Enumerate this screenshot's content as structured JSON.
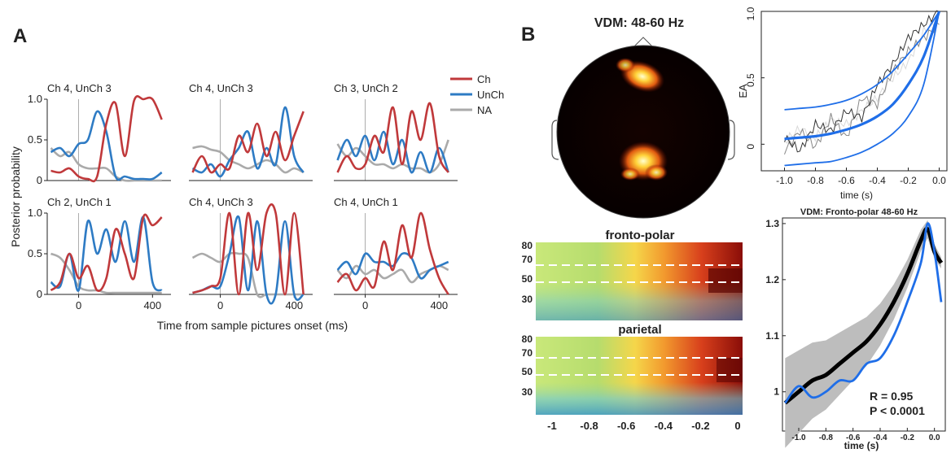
{
  "panel_a": {
    "letter": "A",
    "ylabel": "Posterior probability",
    "xlabel": "Time from sample pictures onset (ms)",
    "y_ticks": [
      "0",
      "0.5",
      "1.0"
    ],
    "x_ticks": [
      "0",
      "400"
    ],
    "legend": [
      {
        "label": "Ch",
        "color": "#c0393b"
      },
      {
        "label": "UnCh",
        "color": "#2e7bc4"
      },
      {
        "label": "NA",
        "color": "#aaaaaa"
      }
    ],
    "subplot_titles": [
      "Ch 4, UnCh 3",
      "Ch 4, UnCh 3",
      "Ch 3, UnCh 2",
      "Ch 2, UnCh 1",
      "Ch 4, UnCh 3",
      "Ch 4, UnCh 1"
    ]
  },
  "panel_b": {
    "letter": "B",
    "topo_title": "VDM: 48-60 Hz",
    "tf_titles": [
      "fronto-polar",
      "parietal"
    ],
    "tf_y_ticks": [
      "80",
      "70",
      "50",
      "30"
    ],
    "tf_x_ticks": [
      "-1",
      "-0.8",
      "-0.6",
      "-0.4",
      "-0.2",
      "0"
    ],
    "ea_plot": {
      "ylabel": "EA",
      "xlabel": "time (s)",
      "y_ticks": [
        "0",
        "0.5",
        "1.0"
      ],
      "x_ticks": [
        "-1.0",
        "-0.8",
        "-0.6",
        "-0.4",
        "-0.2",
        "0.0"
      ]
    },
    "fit_plot": {
      "title": "VDM: Fronto-polar 48-60 Hz",
      "xlabel": "time (s)",
      "y_ticks": [
        "1",
        "1.1",
        "1.2",
        "1.3"
      ],
      "x_ticks": [
        "-1.0",
        "-0.8",
        "-0.6",
        "-0.4",
        "-0.2",
        "0.0"
      ],
      "stats_r": "R = 0.95",
      "stats_p": "P < 0.0001"
    }
  },
  "chart_data": [
    {
      "type": "line",
      "title": "Ch 4, UnCh 3",
      "x": [
        -150,
        -100,
        -50,
        0,
        50,
        100,
        150,
        200,
        250,
        300,
        350,
        400,
        450
      ],
      "ylim": [
        0,
        1
      ],
      "series": [
        {
          "name": "Ch",
          "values": [
            0.12,
            0.1,
            0.15,
            0.05,
            0.02,
            0.05,
            0.7,
            0.95,
            0.3,
            0.98,
            1.0,
            1.0,
            0.75
          ]
        },
        {
          "name": "UnCh",
          "values": [
            0.35,
            0.4,
            0.3,
            0.45,
            0.5,
            0.85,
            0.6,
            0.05,
            0.05,
            0.02,
            0.02,
            0.02,
            0.1
          ]
        },
        {
          "name": "NA",
          "values": [
            0.4,
            0.3,
            0.35,
            0.2,
            0.15,
            0.15,
            0.15,
            0.05,
            0.0,
            0.0,
            0.0,
            0.0,
            0.0
          ]
        }
      ]
    },
    {
      "type": "line",
      "title": "Ch 4, UnCh 3",
      "x": [
        -150,
        -100,
        -50,
        0,
        50,
        100,
        150,
        200,
        250,
        300,
        350,
        400,
        450
      ],
      "ylim": [
        0,
        1
      ],
      "series": [
        {
          "name": "Ch",
          "values": [
            0.1,
            0.3,
            0.1,
            0.2,
            0.15,
            0.55,
            0.35,
            0.7,
            0.3,
            0.6,
            0.25,
            0.55,
            0.85
          ]
        },
        {
          "name": "UnCh",
          "values": [
            0.15,
            0.1,
            0.2,
            0.05,
            0.25,
            0.4,
            0.6,
            0.15,
            0.4,
            0.2,
            0.9,
            0.3,
            0.1
          ]
        },
        {
          "name": "NA",
          "values": [
            0.4,
            0.42,
            0.38,
            0.35,
            0.25,
            0.2,
            0.15,
            0.2,
            0.25,
            0.2,
            0.1,
            0.15,
            0.1
          ]
        }
      ]
    },
    {
      "type": "line",
      "title": "Ch 3, UnCh 2",
      "x": [
        -150,
        -100,
        -50,
        0,
        50,
        100,
        150,
        200,
        250,
        300,
        350,
        400,
        450
      ],
      "ylim": [
        0,
        1
      ],
      "series": [
        {
          "name": "Ch",
          "values": [
            0.1,
            0.3,
            0.15,
            0.2,
            0.55,
            0.35,
            0.9,
            0.2,
            0.85,
            0.5,
            0.95,
            0.3,
            0.1
          ]
        },
        {
          "name": "UnCh",
          "values": [
            0.25,
            0.5,
            0.3,
            0.55,
            0.25,
            0.6,
            0.2,
            0.5,
            0.1,
            0.35,
            0.1,
            0.4,
            0.1
          ]
        },
        {
          "name": "NA",
          "values": [
            0.45,
            0.3,
            0.4,
            0.3,
            0.2,
            0.2,
            0.15,
            0.2,
            0.15,
            0.15,
            0.1,
            0.2,
            0.5
          ]
        }
      ]
    },
    {
      "type": "line",
      "title": "Ch 2, UnCh 1",
      "x": [
        -150,
        -100,
        -50,
        0,
        50,
        100,
        150,
        200,
        250,
        300,
        350,
        400,
        450
      ],
      "ylim": [
        0,
        1
      ],
      "series": [
        {
          "name": "Ch",
          "values": [
            0.05,
            0.15,
            0.5,
            0.2,
            0.35,
            0.05,
            0.2,
            0.8,
            0.5,
            0.2,
            0.95,
            0.85,
            0.95
          ]
        },
        {
          "name": "UnCh",
          "values": [
            0.15,
            0.1,
            0.5,
            0.05,
            0.9,
            0.5,
            0.8,
            0.4,
            0.9,
            0.4,
            0.95,
            0.15,
            0.05
          ]
        },
        {
          "name": "NA",
          "values": [
            0.5,
            0.45,
            0.3,
            0.1,
            0.05,
            0.05,
            0.02,
            0.02,
            0.02,
            0.02,
            0.02,
            0.02,
            0.02
          ]
        }
      ]
    },
    {
      "type": "line",
      "title": "Ch 4, UnCh 3",
      "x": [
        -150,
        -100,
        -50,
        0,
        50,
        100,
        150,
        200,
        250,
        300,
        350,
        400,
        450
      ],
      "ylim": [
        0,
        1
      ],
      "series": [
        {
          "name": "Ch",
          "values": [
            0.02,
            0.05,
            0.1,
            0.2,
            1.0,
            0.0,
            1.0,
            0.3,
            1.0,
            1.0,
            0.0,
            1.0,
            0.0
          ]
        },
        {
          "name": "UnCh",
          "values": [
            0.02,
            0.05,
            0.1,
            0.1,
            0.5,
            0.95,
            0.05,
            0.9,
            0.0,
            0.0,
            0.9,
            0.0,
            0.0
          ]
        },
        {
          "name": "NA",
          "values": [
            0.45,
            0.5,
            0.45,
            0.4,
            0.5,
            0.5,
            0.45,
            0.0,
            0.0,
            0.0,
            0.0,
            0.0,
            0.0
          ]
        }
      ]
    },
    {
      "type": "line",
      "title": "Ch 4, UnCh 1",
      "x": [
        -150,
        -100,
        -50,
        0,
        50,
        100,
        150,
        200,
        250,
        300,
        350,
        400,
        450
      ],
      "ylim": [
        0,
        1
      ],
      "series": [
        {
          "name": "Ch",
          "values": [
            0.15,
            0.25,
            0.05,
            0.2,
            0.1,
            0.65,
            0.3,
            0.85,
            0.45,
            1.0,
            0.55,
            0.2,
            0.0
          ]
        },
        {
          "name": "UnCh",
          "values": [
            0.3,
            0.4,
            0.25,
            0.5,
            0.4,
            0.4,
            0.35,
            0.5,
            0.45,
            0.2,
            0.3,
            0.35,
            0.4
          ]
        },
        {
          "name": "NA",
          "values": [
            0.3,
            0.2,
            0.35,
            0.25,
            0.3,
            0.2,
            0.25,
            0.3,
            0.15,
            0.25,
            0.3,
            0.35,
            0.3
          ]
        }
      ]
    },
    {
      "type": "line",
      "x": [
        -1.0,
        -0.9,
        -0.8,
        -0.7,
        -0.6,
        -0.5,
        -0.4,
        -0.3,
        -0.2,
        -0.1,
        0.0
      ],
      "xlabel": "time (s)",
      "ylabel": "EA",
      "ylim": [
        -0.2,
        1.0
      ],
      "series": [
        {
          "values": [
            0.04,
            0.05,
            0.06,
            0.08,
            0.11,
            0.15,
            0.21,
            0.3,
            0.45,
            0.66,
            1.0
          ]
        },
        {
          "values": [
            0.26,
            0.27,
            0.28,
            0.3,
            0.33,
            0.38,
            0.45,
            0.55,
            0.68,
            0.82,
            1.0
          ]
        },
        {
          "values": [
            -0.16,
            -0.15,
            -0.14,
            -0.13,
            -0.1,
            -0.06,
            0.0,
            0.08,
            0.21,
            0.45,
            1.0
          ]
        },
        {
          "values": [
            0.02,
            0.12,
            0.05,
            0.18,
            0.15,
            0.25,
            0.35,
            0.5,
            0.62,
            0.85,
            0.95
          ]
        },
        {
          "values": [
            -0.05,
            0.1,
            -0.02,
            0.2,
            0.05,
            0.35,
            0.3,
            0.55,
            0.7,
            0.8,
            0.9
          ]
        },
        {
          "values": [
            0.05,
            -0.05,
            0.15,
            0.1,
            0.25,
            0.2,
            0.45,
            0.6,
            0.8,
            0.9,
            1.0
          ]
        }
      ]
    },
    {
      "type": "line",
      "title": "VDM: Fronto-polar 48-60 Hz",
      "x": [
        -1.1,
        -1.0,
        -0.9,
        -0.8,
        -0.7,
        -0.6,
        -0.5,
        -0.4,
        -0.3,
        -0.2,
        -0.1,
        -0.05,
        0.0,
        0.05
      ],
      "xlabel": "time (s)",
      "ylim": [
        0.93,
        1.31
      ],
      "series": [
        {
          "values": [
            0.98,
            1.0,
            1.02,
            1.03,
            1.05,
            1.07,
            1.09,
            1.12,
            1.16,
            1.21,
            1.27,
            1.29,
            1.25,
            1.23
          ]
        },
        {
          "values": [
            0.98,
            1.01,
            0.99,
            1.0,
            1.02,
            1.02,
            1.05,
            1.06,
            1.1,
            1.16,
            1.23,
            1.3,
            1.25,
            1.16
          ]
        }
      ]
    }
  ]
}
